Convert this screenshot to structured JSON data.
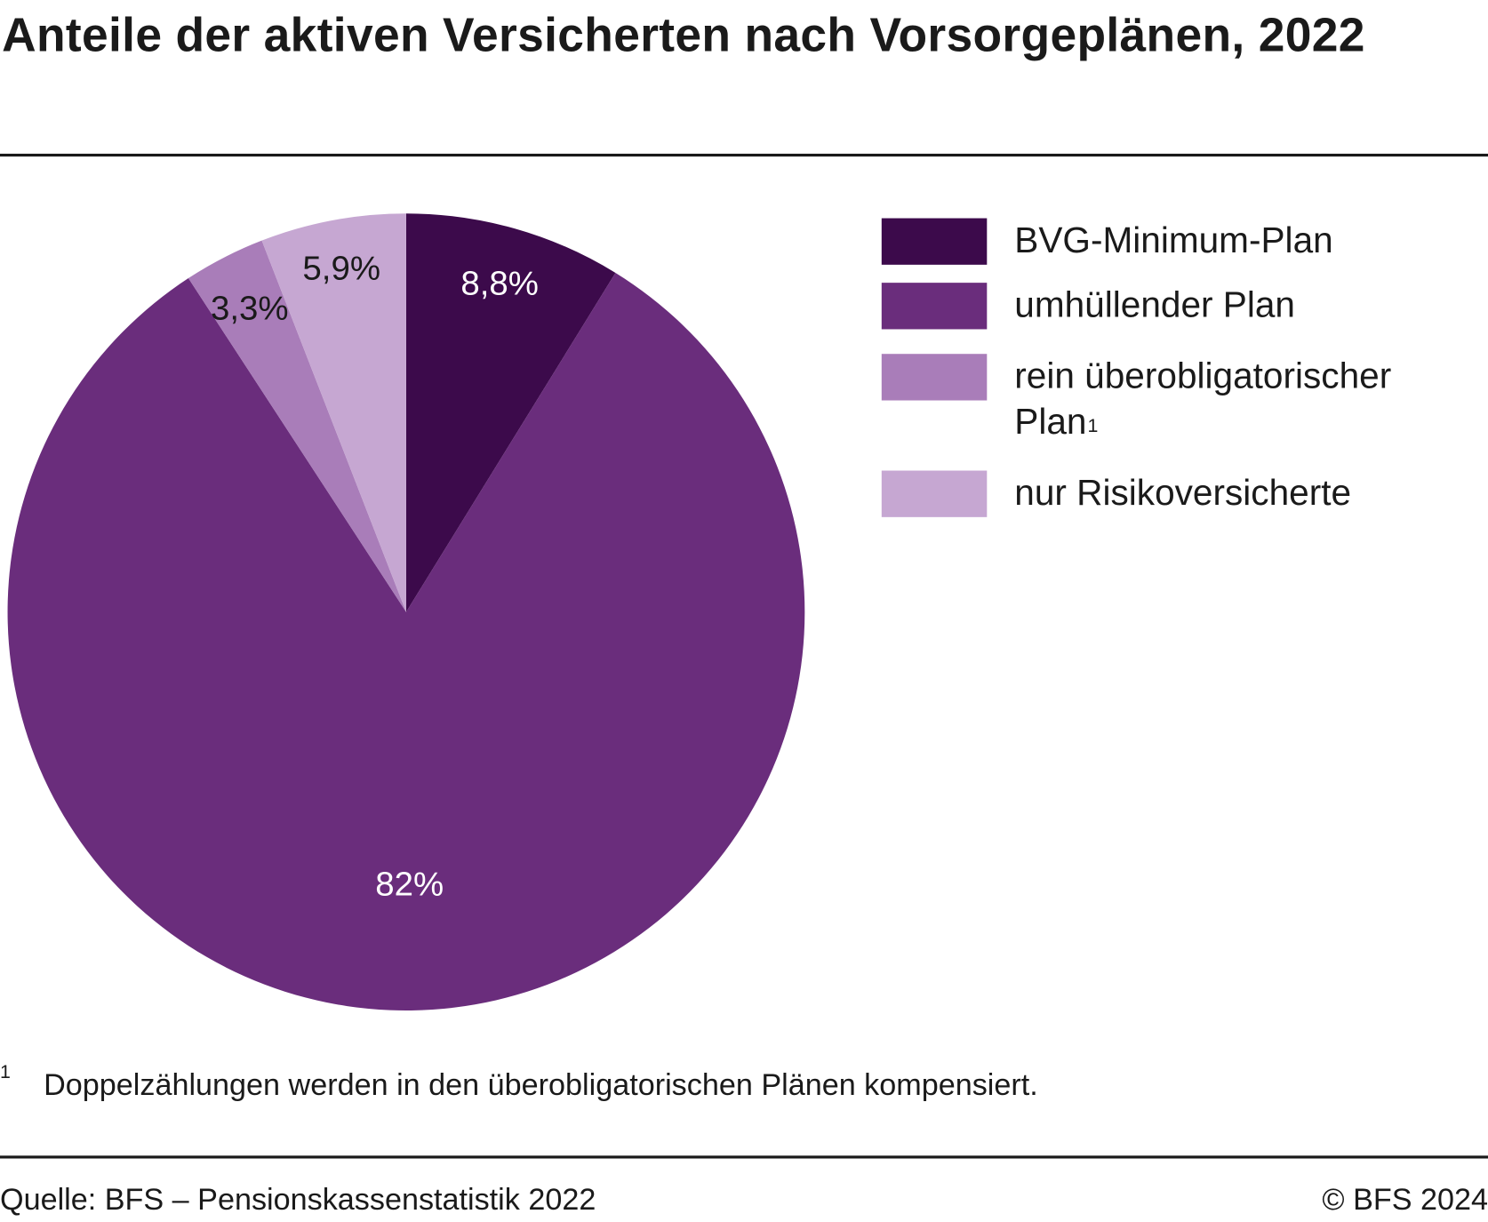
{
  "title": "Anteile der aktiven Versicherten nach Vorsorgeplänen, 2022",
  "chart_data": {
    "type": "pie",
    "title": "Anteile der aktiven Versicherten nach Vorsorgeplänen, 2022",
    "start": "top",
    "direction": "clockwise",
    "slices": [
      {
        "name": "BVG-Minimum-Plan",
        "value": 8.8,
        "label": "8,8%",
        "color": "#3c0a4b",
        "label_color": "#ffffff"
      },
      {
        "name": "umhüllender Plan",
        "value": 82,
        "label": "82%",
        "color": "#6a2d7c",
        "label_color": "#ffffff"
      },
      {
        "name": "rein überobligatorischer Plan",
        "footnote_mark": "1",
        "value": 3.3,
        "label": "3,3%",
        "color": "#a97db9",
        "label_color": "#1a1a1a"
      },
      {
        "name": "nur Risikoversicherte",
        "value": 5.9,
        "label": "5,9%",
        "color": "#c6a7d2",
        "label_color": "#1a1a1a"
      }
    ],
    "legend_position": "right"
  },
  "footnote": {
    "mark": "1",
    "text": "Doppelzählungen werden in den überobligatorischen Plänen kompensiert."
  },
  "source": "Quelle: BFS – Pensionskassenstatistik 2022",
  "copyright": "© BFS 2024"
}
